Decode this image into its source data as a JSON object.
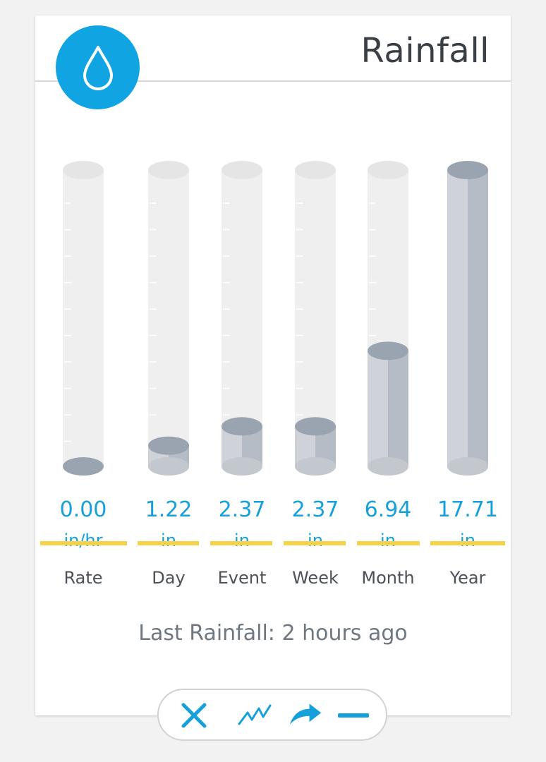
{
  "widget": {
    "title": "Rainfall",
    "icon": "raindrop-icon",
    "accent_color": "#11a4e3",
    "last_rainfall_label": "Last Rainfall:",
    "last_rainfall_value": "2 hours ago"
  },
  "chart_data": {
    "type": "bar",
    "categories": [
      "Rate",
      "Day",
      "Event",
      "Week",
      "Month",
      "Year"
    ],
    "values": [
      0.0,
      1.22,
      2.37,
      2.37,
      6.94,
      17.71
    ],
    "value_labels": [
      "0.00",
      "1.22",
      "2.37",
      "2.37",
      "6.94",
      "17.71"
    ],
    "units": [
      "in/hr",
      "in",
      "in",
      "in",
      "in",
      "in"
    ],
    "fill_fraction": [
      0.0,
      0.07,
      0.135,
      0.135,
      0.39,
      1.0
    ]
  },
  "toolbar": {
    "buttons": [
      {
        "name": "close-button",
        "icon": "close-icon"
      },
      {
        "name": "chart-button",
        "icon": "line-chart-icon"
      },
      {
        "name": "share-button",
        "icon": "share-arrow-icon"
      },
      {
        "name": "minimize-button",
        "icon": "minimize-icon"
      }
    ]
  }
}
